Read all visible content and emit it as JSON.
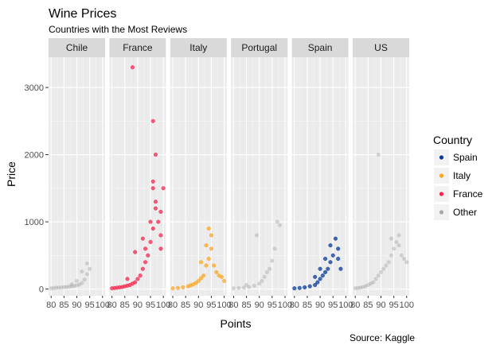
{
  "chart_data": {
    "type": "scatter",
    "title": "Wine Prices",
    "subtitle": "Countries with the Most Reviews",
    "xlabel": "Points",
    "ylabel": "Price",
    "caption": "Source: Kaggle",
    "xlim": [
      79,
      101
    ],
    "ylim": [
      -100,
      3450
    ],
    "xticks": [
      80,
      85,
      90,
      95,
      100
    ],
    "yticks": [
      0,
      1000,
      2000,
      3000
    ],
    "legend": {
      "title": "Country",
      "position": "right",
      "entries": [
        {
          "label": "Spain",
          "color": "#083b9a"
        },
        {
          "label": "Italy",
          "color": "#f9a825"
        },
        {
          "label": "France",
          "color": "#f4284f"
        },
        {
          "label": "Other",
          "color": "#a8a8a8"
        }
      ]
    },
    "panels": [
      {
        "name": "Chile",
        "group": "Other",
        "points": [
          [
            80,
            10
          ],
          [
            81,
            14
          ],
          [
            82,
            18
          ],
          [
            83,
            22
          ],
          [
            84,
            20
          ],
          [
            85,
            28
          ],
          [
            86,
            30
          ],
          [
            87,
            35
          ],
          [
            88,
            40
          ],
          [
            89,
            45
          ],
          [
            90,
            55
          ],
          [
            91,
            65
          ],
          [
            92,
            90
          ],
          [
            93,
            140
          ],
          [
            94,
            220
          ],
          [
            94,
            380
          ],
          [
            95,
            300
          ],
          [
            92,
            260
          ],
          [
            90,
            120
          ],
          [
            88,
            70
          ]
        ]
      },
      {
        "name": "France",
        "group": "France",
        "points": [
          [
            80,
            10
          ],
          [
            81,
            15
          ],
          [
            82,
            20
          ],
          [
            83,
            25
          ],
          [
            84,
            30
          ],
          [
            85,
            40
          ],
          [
            86,
            50
          ],
          [
            87,
            60
          ],
          [
            88,
            80
          ],
          [
            89,
            100
          ],
          [
            90,
            150
          ],
          [
            91,
            200
          ],
          [
            92,
            300
          ],
          [
            93,
            400
          ],
          [
            94,
            500
          ],
          [
            95,
            700
          ],
          [
            96,
            900
          ],
          [
            97,
            1200
          ],
          [
            98,
            1000
          ],
          [
            99,
            800
          ],
          [
            100,
            1500
          ],
          [
            88,
            3300
          ],
          [
            96,
            2500
          ],
          [
            97,
            2000
          ],
          [
            96,
            1600
          ],
          [
            97,
            1300
          ],
          [
            99,
            1150
          ],
          [
            92,
            750
          ],
          [
            89,
            550
          ],
          [
            86,
            150
          ],
          [
            96,
            1500
          ],
          [
            95,
            1000
          ],
          [
            99,
            600
          ],
          [
            93,
            600
          ]
        ]
      },
      {
        "name": "Italy",
        "group": "Italy",
        "points": [
          [
            80,
            10
          ],
          [
            82,
            15
          ],
          [
            84,
            25
          ],
          [
            86,
            40
          ],
          [
            87,
            55
          ],
          [
            88,
            70
          ],
          [
            89,
            90
          ],
          [
            90,
            120
          ],
          [
            91,
            160
          ],
          [
            92,
            200
          ],
          [
            93,
            350
          ],
          [
            94,
            450
          ],
          [
            95,
            600
          ],
          [
            96,
            350
          ],
          [
            97,
            250
          ],
          [
            94,
            900
          ],
          [
            95,
            800
          ],
          [
            93,
            650
          ],
          [
            91,
            400
          ],
          [
            98,
            200
          ],
          [
            99,
            180
          ],
          [
            100,
            120
          ]
        ]
      },
      {
        "name": "Portugal",
        "group": "Other",
        "points": [
          [
            80,
            10
          ],
          [
            82,
            15
          ],
          [
            84,
            20
          ],
          [
            86,
            30
          ],
          [
            88,
            50
          ],
          [
            90,
            80
          ],
          [
            91,
            120
          ],
          [
            92,
            180
          ],
          [
            93,
            250
          ],
          [
            94,
            300
          ],
          [
            95,
            420
          ],
          [
            96,
            600
          ],
          [
            98,
            950
          ],
          [
            97,
            1000
          ],
          [
            89,
            800
          ],
          [
            85,
            60
          ]
        ]
      },
      {
        "name": "Spain",
        "group": "Spain",
        "points": [
          [
            80,
            10
          ],
          [
            82,
            15
          ],
          [
            84,
            25
          ],
          [
            86,
            40
          ],
          [
            88,
            60
          ],
          [
            89,
            100
          ],
          [
            90,
            150
          ],
          [
            91,
            200
          ],
          [
            92,
            250
          ],
          [
            93,
            300
          ],
          [
            94,
            400
          ],
          [
            95,
            500
          ],
          [
            96,
            750
          ],
          [
            97,
            600
          ],
          [
            94,
            650
          ],
          [
            92,
            450
          ],
          [
            98,
            300
          ],
          [
            97,
            450
          ],
          [
            90,
            300
          ],
          [
            88,
            180
          ]
        ]
      },
      {
        "name": "US",
        "group": "Other",
        "points": [
          [
            80,
            10
          ],
          [
            81,
            15
          ],
          [
            82,
            20
          ],
          [
            83,
            30
          ],
          [
            84,
            40
          ],
          [
            85,
            60
          ],
          [
            86,
            80
          ],
          [
            87,
            100
          ],
          [
            88,
            150
          ],
          [
            89,
            200
          ],
          [
            90,
            250
          ],
          [
            91,
            300
          ],
          [
            92,
            350
          ],
          [
            93,
            400
          ],
          [
            94,
            500
          ],
          [
            95,
            600
          ],
          [
            96,
            700
          ],
          [
            97,
            650
          ],
          [
            98,
            500
          ],
          [
            99,
            450
          ],
          [
            100,
            400
          ],
          [
            89,
            2000
          ],
          [
            94,
            750
          ],
          [
            97,
            800
          ]
        ]
      }
    ]
  }
}
